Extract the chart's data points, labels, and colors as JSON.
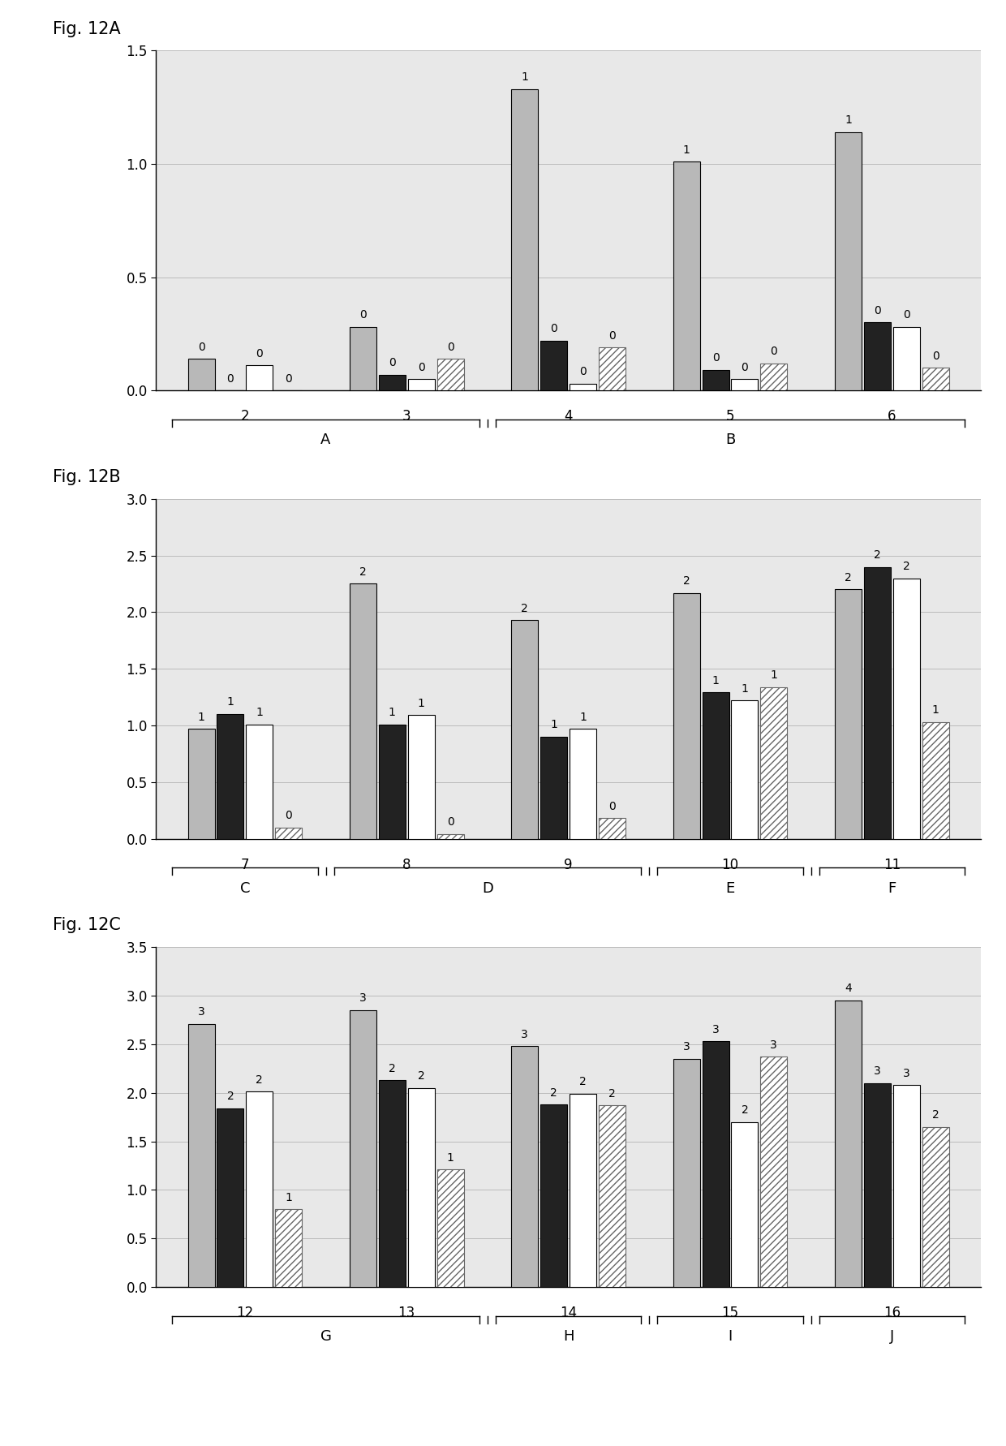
{
  "fig12A": {
    "title": "Fig. 12A",
    "ylim": [
      0,
      1.5
    ],
    "yticks": [
      0,
      0.5,
      1.0,
      1.5
    ],
    "groups": [
      {
        "label": "2",
        "values": [
          0.14,
          0.0,
          0.11,
          0.0
        ],
        "annotations": [
          "0",
          "0",
          "0",
          "0"
        ]
      },
      {
        "label": "3",
        "values": [
          0.28,
          0.07,
          0.05,
          0.14
        ],
        "annotations": [
          "0",
          "0",
          "0",
          "0"
        ]
      },
      {
        "label": "4",
        "values": [
          1.33,
          0.22,
          0.03,
          0.19
        ],
        "annotations": [
          "1",
          "0",
          "0",
          "0"
        ]
      },
      {
        "label": "5",
        "values": [
          1.01,
          0.09,
          0.05,
          0.12
        ],
        "annotations": [
          "1",
          "0",
          "0",
          "0"
        ]
      },
      {
        "label": "6",
        "values": [
          1.14,
          0.3,
          0.28,
          0.1
        ],
        "annotations": [
          "1",
          "0",
          "0",
          "0"
        ]
      }
    ],
    "group_labels": [
      {
        "label": "A",
        "groups": [
          "2",
          "3"
        ]
      },
      {
        "label": "B",
        "groups": [
          "4",
          "5",
          "6"
        ]
      }
    ]
  },
  "fig12B": {
    "title": "Fig. 12B",
    "ylim": [
      0,
      3.0
    ],
    "yticks": [
      0,
      0.5,
      1.0,
      1.5,
      2.0,
      2.5,
      3.0
    ],
    "groups": [
      {
        "label": "7",
        "values": [
          0.97,
          1.1,
          1.01,
          0.1
        ],
        "annotations": [
          "1",
          "1",
          "1",
          "0"
        ]
      },
      {
        "label": "8",
        "values": [
          2.25,
          1.01,
          1.09,
          0.04
        ],
        "annotations": [
          "2",
          "1",
          "1",
          "0"
        ]
      },
      {
        "label": "9",
        "values": [
          1.93,
          0.9,
          0.97,
          0.18
        ],
        "annotations": [
          "2",
          "1",
          "1",
          "0"
        ]
      },
      {
        "label": "10",
        "values": [
          2.17,
          1.29,
          1.22,
          1.34
        ],
        "annotations": [
          "2",
          "1",
          "1",
          "1"
        ]
      },
      {
        "label": "11",
        "values": [
          2.2,
          2.4,
          2.3,
          1.03
        ],
        "annotations": [
          "2",
          "2",
          "2",
          "1"
        ]
      }
    ],
    "group_labels": [
      {
        "label": "C",
        "groups": [
          "7"
        ]
      },
      {
        "label": "D",
        "groups": [
          "8",
          "9"
        ]
      },
      {
        "label": "E",
        "groups": [
          "10"
        ]
      },
      {
        "label": "F",
        "groups": [
          "11"
        ]
      }
    ]
  },
  "fig12C": {
    "title": "Fig. 12C",
    "ylim": [
      0,
      3.5
    ],
    "yticks": [
      0,
      0.5,
      1.0,
      1.5,
      2.0,
      2.5,
      3.0,
      3.5
    ],
    "groups": [
      {
        "label": "12",
        "values": [
          2.71,
          1.84,
          2.01,
          0.8
        ],
        "annotations": [
          "3",
          "2",
          "2",
          "1"
        ]
      },
      {
        "label": "13",
        "values": [
          2.85,
          2.13,
          2.05,
          1.21
        ],
        "annotations": [
          "3",
          "2",
          "2",
          "1"
        ]
      },
      {
        "label": "14",
        "values": [
          2.48,
          1.88,
          1.99,
          1.87
        ],
        "annotations": [
          "3",
          "2",
          "2",
          "2"
        ]
      },
      {
        "label": "15",
        "values": [
          2.35,
          2.53,
          1.7,
          2.37
        ],
        "annotations": [
          "3",
          "3",
          "2",
          "3"
        ]
      },
      {
        "label": "16",
        "values": [
          2.95,
          2.1,
          2.08,
          1.65
        ],
        "annotations": [
          "4",
          "3",
          "3",
          "2"
        ]
      }
    ],
    "group_labels": [
      {
        "label": "G",
        "groups": [
          "12",
          "13"
        ]
      },
      {
        "label": "H",
        "groups": [
          "14"
        ]
      },
      {
        "label": "I",
        "groups": [
          "15"
        ]
      },
      {
        "label": "J",
        "groups": [
          "16"
        ]
      }
    ]
  },
  "bar_colors": [
    "#b8b8b8",
    "#222222",
    "#ffffff"
  ],
  "bar_edgecolor": "#000000",
  "hatch_pattern": "////",
  "hatch_facecolor": "#ffffff",
  "hatch_edgecolor": "#666666",
  "plot_bg": "#e8e8e8",
  "fig_bg": "#ffffff",
  "annotation_fontsize": 10,
  "tick_fontsize": 12,
  "grouplabel_fontsize": 12,
  "bracketlabel_fontsize": 13,
  "title_fontsize": 15
}
